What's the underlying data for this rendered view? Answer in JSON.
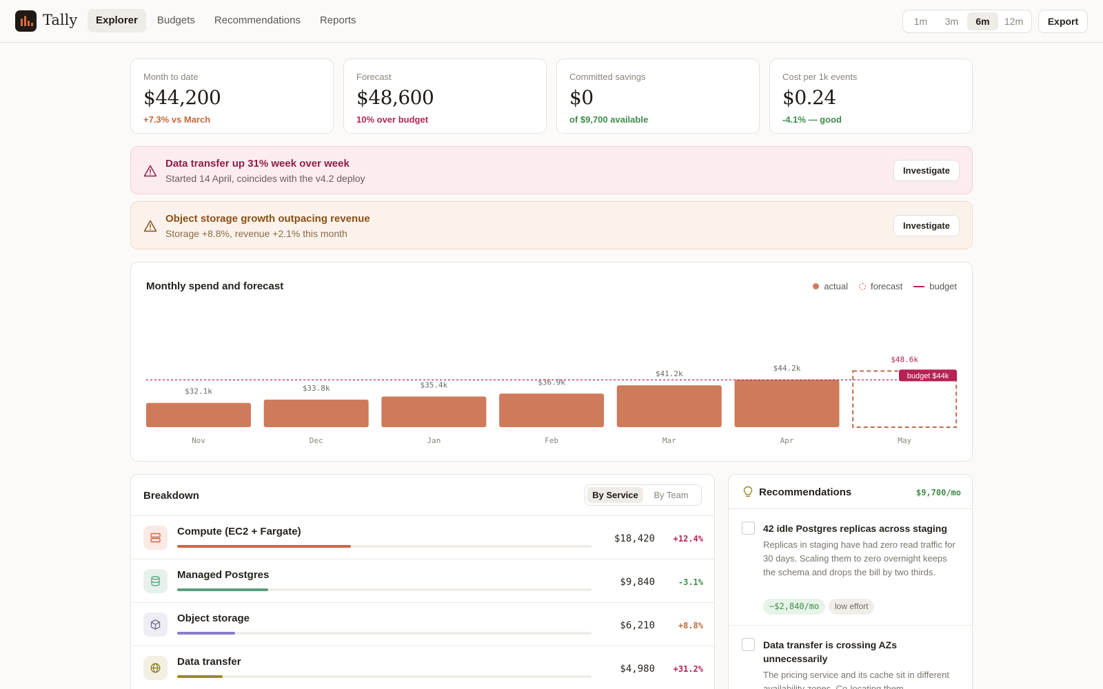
{
  "app": {
    "brand": "Tally"
  },
  "nav": {
    "items": [
      "Explorer",
      "Budgets",
      "Recommendations",
      "Reports"
    ],
    "active": 0
  },
  "range": {
    "options": [
      "1m",
      "3m",
      "6m",
      "12m"
    ],
    "active": 2
  },
  "toolbar": {
    "export_label": "Export"
  },
  "kpis": [
    {
      "label": "Month to date",
      "value": "$44,200",
      "delta": "+7.3% vs March",
      "tone": "#c26a3c"
    },
    {
      "label": "Forecast",
      "value": "$48,600",
      "delta": "10% over budget",
      "tone": "#b4235a"
    },
    {
      "label": "Committed savings",
      "value": "$0",
      "delta": "of $9,700 available",
      "tone": "#3f8b4b"
    },
    {
      "label": "Cost per 1k events",
      "value": "$0.24",
      "delta": "-4.1% — good",
      "tone": "#3f8b4b"
    }
  ],
  "alerts": [
    {
      "title": "Data transfer up 31% week over week",
      "subtitle": "Started 14 April, coincides with the v4.2 deploy",
      "action": "Investigate",
      "icon": "warning-triangle-icon"
    },
    {
      "title": "Object storage growth outpacing revenue",
      "subtitle": "Storage +8.8%, revenue +2.1% this month",
      "action": "Investigate",
      "icon": "warning-triangle-icon"
    }
  ],
  "chart": {
    "legend": {
      "actual": "actual",
      "forecast": "forecast",
      "budget": "budget"
    }
  },
  "chart_data": {
    "type": "bar",
    "title": "Monthly spend and forecast",
    "categories": [
      "Nov",
      "Dec",
      "Jan",
      "Feb",
      "Mar",
      "Apr",
      "May"
    ],
    "values": [
      32.1,
      33.8,
      35.4,
      36.9,
      41.2,
      44.2,
      48.6
    ],
    "value_labels": [
      "$32.1k",
      "$33.8k",
      "$35.4k",
      "$36.9k",
      "$41.2k",
      "$44.2k",
      "$48.6k"
    ],
    "kinds": [
      "actual",
      "actual",
      "actual",
      "actual",
      "actual",
      "actual",
      "forecast"
    ],
    "budget": 44,
    "budget_label": "budget $44k",
    "units": "thousands of USD",
    "colors": {
      "actual": "#cf7a5b",
      "forecast": "#c0694a",
      "budget": "#b52255"
    },
    "grid": false,
    "legend_position": "top-right"
  },
  "breakdown": {
    "title": "Breakdown",
    "toggle": {
      "options": [
        "By Service",
        "By Team"
      ],
      "active": 0
    },
    "rows": [
      {
        "name": "Compute (EC2 + Fargate)",
        "amount": "$18,420",
        "change": "+12.4%",
        "share": 0.42,
        "color": "#c9684a",
        "icon_bg": "#fbe9e3",
        "icon": "server-icon",
        "change_color": "#b4235a"
      },
      {
        "name": "Managed Postgres",
        "amount": "$9,840",
        "change": "-3.1%",
        "share": 0.22,
        "color": "#5d9d7e",
        "icon_bg": "#e7f1ec",
        "icon": "database-icon",
        "change_color": "#3f8b4b"
      },
      {
        "name": "Object storage",
        "amount": "$6,210",
        "change": "+8.8%",
        "share": 0.14,
        "color": "#8b7cc8",
        "icon_bg": "#eeedf4",
        "icon": "cube-icon",
        "change_color": "#c26a3c"
      },
      {
        "name": "Data transfer",
        "amount": "$4,980",
        "change": "+31.2%",
        "share": 0.11,
        "color": "#9a8a24",
        "icon_bg": "#f3f0e1",
        "icon": "globe-icon",
        "change_color": "#b4235a"
      }
    ]
  },
  "recommendations": {
    "title": "Recommendations",
    "total": "$9,700/mo",
    "items": [
      {
        "title": "42 idle Postgres replicas across staging",
        "description": "Replicas in staging have had zero read traffic for 30 days. Scaling them to zero overnight keeps the schema and drops the bill by two thirds.",
        "savings": "−$2,840/mo",
        "effort": "low effort"
      },
      {
        "title": "Data transfer is crossing AZs unnecessarily",
        "description": "The pricing service and its cache sit in different availability zones. Co-locating them"
      }
    ]
  }
}
